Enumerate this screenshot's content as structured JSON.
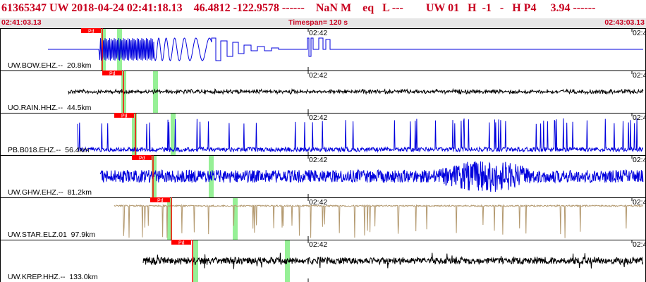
{
  "header": {
    "title": "61365347 UW 2018-04-24 02:41:18.13    46.4812 -122.9578 ------    NaN M    eq   L ---        UW 01   H  -1   -   H P4     3.94 ------",
    "time_start": "02:41:03.13",
    "timespan": "Timespan= 120 s",
    "time_end": "02:43:03.13"
  },
  "colors": {
    "title_red": "#c8001e",
    "time_bar_bg": "#e7e7e7",
    "pick_red": "#ff0000",
    "window_green": "#96f096",
    "trace_blue": "#0000dd",
    "trace_black": "#000000",
    "trace_tan": "#b49a70"
  },
  "minute_tick": "02:42",
  "right_tick": "02:4",
  "channels": [
    {
      "label": "UW.BOW.EHZ.--  20.8km",
      "pick": "Pd",
      "color": "blue"
    },
    {
      "label": "UO.RAIN.HHZ.--  44.5km",
      "pick": "Pd",
      "color": "black"
    },
    {
      "label": "PB.B018.EHZ.--  56.4km",
      "pick": "Pd",
      "color": "blue"
    },
    {
      "label": "UW.GHW.EHZ.--  81.2km",
      "pick": "Pd",
      "color": "blue"
    },
    {
      "label": "UW.STAR.ELZ.01  97.9km",
      "pick": "Pd",
      "color": "tan"
    },
    {
      "label": "UW.KREP.HHZ.--  133.0km",
      "pick": "Pd",
      "color": "black"
    }
  ]
}
